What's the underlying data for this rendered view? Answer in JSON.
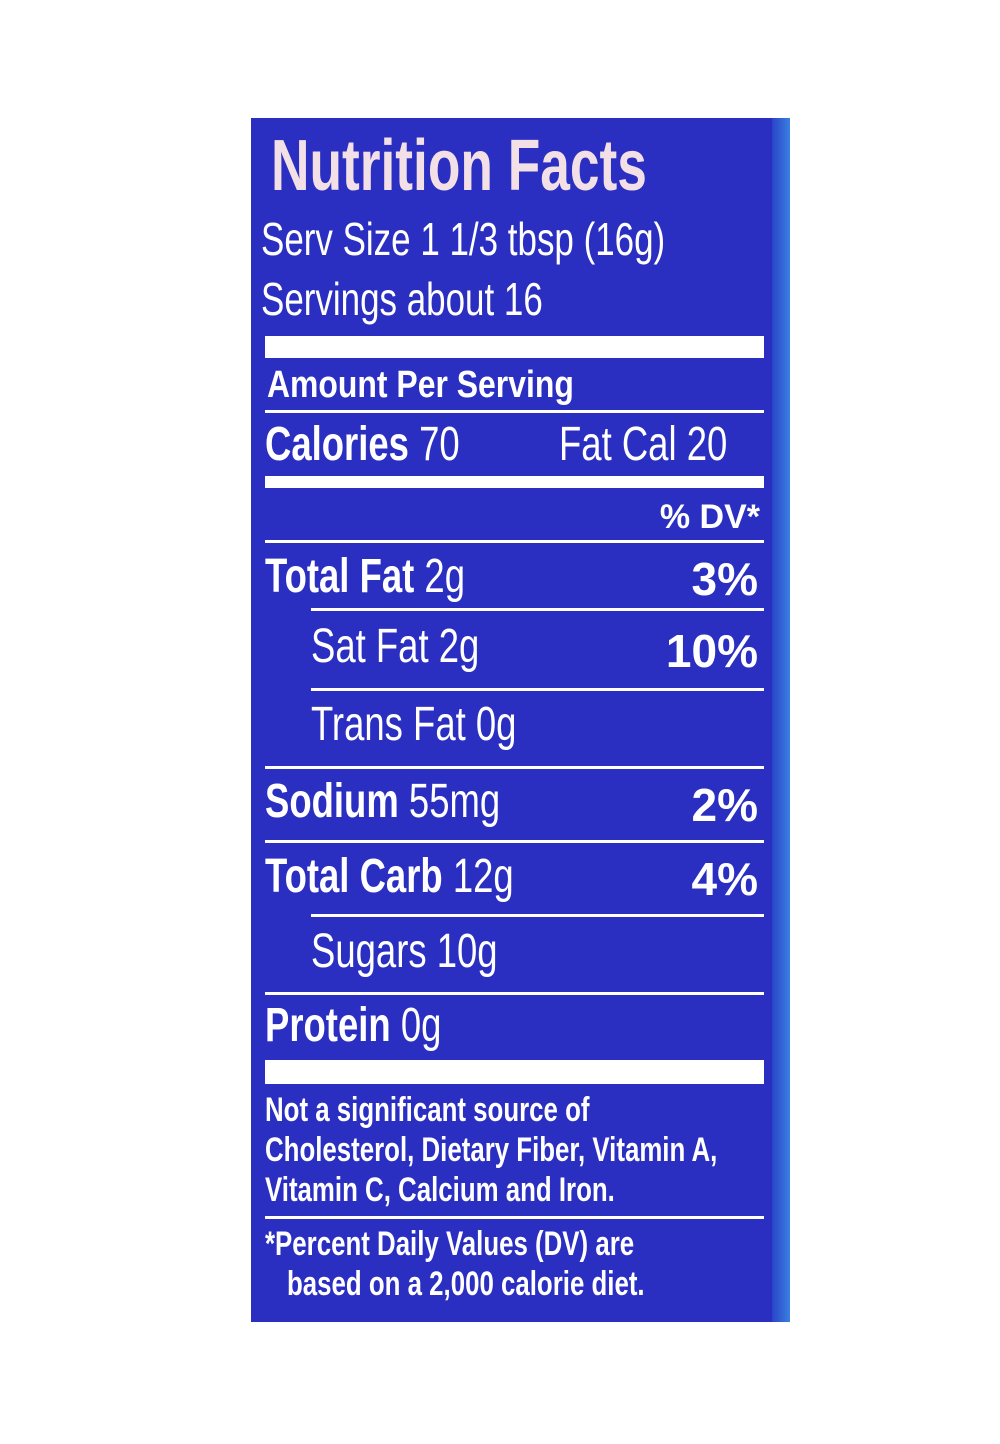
{
  "label": {
    "title": "Nutrition Facts",
    "serving_size": "Serv Size 1 1/3 tbsp (16g)",
    "servings": "Servings about 16",
    "amount_per_serving": "Amount Per Serving",
    "calories_label": "Calories",
    "calories_value": "70",
    "fat_cal": "Fat Cal 20",
    "dv_header": "% DV*",
    "nutrients": [
      {
        "name": "Total Fat",
        "amount": "2g",
        "dv": "3%"
      },
      {
        "name": "Sat Fat",
        "amount": "2g",
        "dv": "10%"
      },
      {
        "name": "Trans Fat",
        "amount": "0g",
        "dv": ""
      },
      {
        "name": "Sodium",
        "amount": "55mg",
        "dv": "2%"
      },
      {
        "name": "Total Carb",
        "amount": "12g",
        "dv": "4%"
      },
      {
        "name": "Sugars",
        "amount": "10g",
        "dv": ""
      },
      {
        "name": "Protein",
        "amount": "0g",
        "dv": ""
      }
    ],
    "footnote_lines": [
      "Not a significant source of",
      "Cholesterol, Dietary Fiber, Vitamin A,",
      "Vitamin C, Calcium and Iron."
    ],
    "dv_note_lines": [
      "*Percent Daily Values (DV) are",
      "based on a 2,000 calorie diet."
    ],
    "colors": {
      "background": "#2a2fc1",
      "text": "#ffffff",
      "title": "#f3dfe6"
    }
  }
}
